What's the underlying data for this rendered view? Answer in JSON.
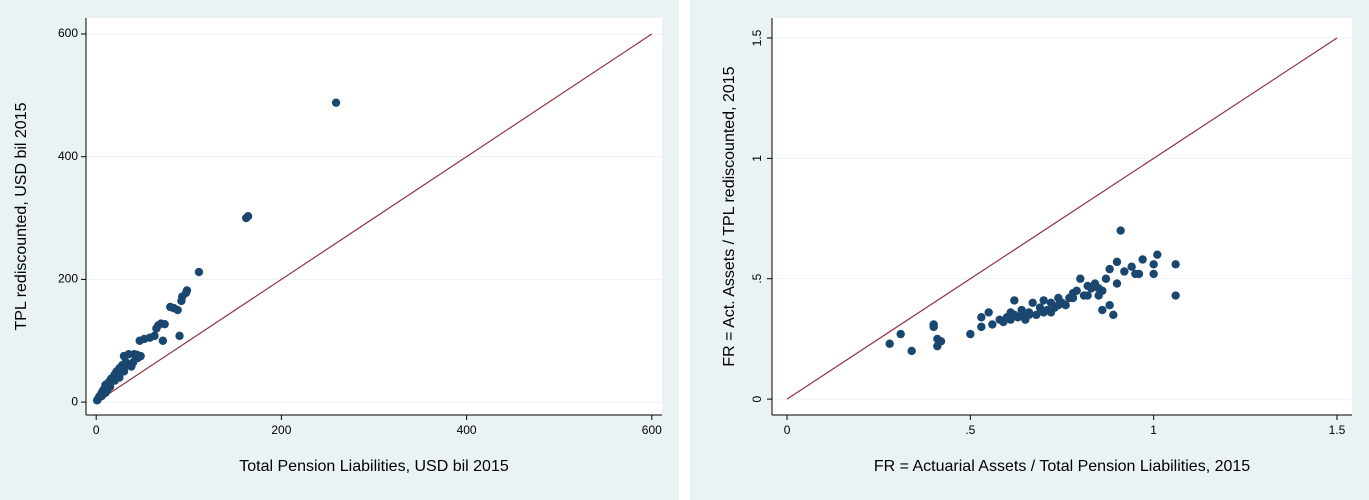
{
  "chart_data": [
    {
      "type": "scatter",
      "x_label": "Total Pension Liabilities, USD bil 2015",
      "y_label": "TPL rediscounted, USD bil 2015",
      "xlim": [
        -11,
        611
      ],
      "ylim": [
        -21,
        626
      ],
      "xticks": [
        0,
        200,
        400,
        600
      ],
      "yticks": [
        0,
        200,
        400,
        600
      ],
      "grid": true,
      "color": "#1a476f",
      "reference_line": {
        "x": [
          0,
          600
        ],
        "y": [
          0,
          600
        ],
        "color": "#90353b"
      },
      "x": [
        259,
        162,
        164,
        111,
        98,
        97,
        93,
        92,
        88,
        90,
        84,
        80,
        70,
        67,
        74,
        72,
        65,
        63,
        58,
        52,
        47,
        44,
        41,
        38,
        35,
        32,
        30,
        28,
        25,
        22,
        20,
        18,
        16,
        14,
        12,
        10,
        9,
        8,
        7,
        6,
        5,
        4,
        3,
        2,
        1,
        12,
        15,
        20,
        25,
        30,
        35,
        40,
        45,
        48,
        10,
        6
      ],
      "y": [
        488,
        300,
        303,
        212,
        182,
        178,
        172,
        165,
        150,
        108,
        153,
        155,
        128,
        125,
        127,
        100,
        120,
        108,
        105,
        103,
        100,
        77,
        78,
        58,
        78,
        65,
        75,
        60,
        55,
        50,
        45,
        40,
        38,
        33,
        30,
        28,
        22,
        20,
        18,
        15,
        12,
        10,
        8,
        5,
        3,
        20,
        25,
        35,
        40,
        50,
        60,
        65,
        72,
        75,
        15,
        10
      ]
    },
    {
      "type": "scatter",
      "x_label": "FR = Actuarial Assets / Total Pension Liabilities, 2015",
      "y_label": "FR = Act. Assets / TPL rediscounted, 2015",
      "xlim": [
        -0.041,
        1.541
      ],
      "ylim": [
        -0.066,
        1.583
      ],
      "xticks": [
        0,
        {
          "value": 0.5,
          "label": ".5"
        },
        1,
        1.5
      ],
      "yticks": [
        0,
        {
          "value": 0.5,
          "label": ".5"
        },
        1,
        1.5
      ],
      "grid": true,
      "color": "#1a476f",
      "reference_line": {
        "x": [
          0,
          1.5
        ],
        "y": [
          0,
          1.5
        ],
        "color": "#90353b"
      },
      "x": [
        0.28,
        0.31,
        0.34,
        0.4,
        0.4,
        0.41,
        0.42,
        0.41,
        0.5,
        0.53,
        0.53,
        0.55,
        0.56,
        0.58,
        0.59,
        0.6,
        0.61,
        0.61,
        0.62,
        0.62,
        0.63,
        0.64,
        0.65,
        0.66,
        0.67,
        0.68,
        0.69,
        0.7,
        0.71,
        0.72,
        0.73,
        0.74,
        0.75,
        0.76,
        0.77,
        0.78,
        0.79,
        0.8,
        0.81,
        0.82,
        0.83,
        0.84,
        0.85,
        0.86,
        0.86,
        0.87,
        0.88,
        0.88,
        0.89,
        0.9,
        0.9,
        0.91,
        0.92,
        0.94,
        0.95,
        0.96,
        0.97,
        1.0,
        1.0,
        1.01,
        1.06,
        1.06,
        0.7,
        0.72,
        0.66,
        0.64,
        0.74,
        0.78,
        0.82,
        0.85
      ],
      "y": [
        0.23,
        0.27,
        0.2,
        0.31,
        0.3,
        0.22,
        0.24,
        0.25,
        0.27,
        0.3,
        0.34,
        0.36,
        0.31,
        0.33,
        0.32,
        0.34,
        0.33,
        0.36,
        0.41,
        0.35,
        0.34,
        0.37,
        0.33,
        0.36,
        0.4,
        0.35,
        0.38,
        0.41,
        0.37,
        0.36,
        0.38,
        0.42,
        0.4,
        0.39,
        0.42,
        0.44,
        0.45,
        0.5,
        0.43,
        0.43,
        0.46,
        0.48,
        0.46,
        0.45,
        0.37,
        0.5,
        0.39,
        0.54,
        0.35,
        0.57,
        0.48,
        0.7,
        0.53,
        0.55,
        0.52,
        0.52,
        0.58,
        0.52,
        0.56,
        0.6,
        0.56,
        0.43,
        0.36,
        0.4,
        0.35,
        0.35,
        0.39,
        0.42,
        0.47,
        0.43
      ]
    }
  ]
}
